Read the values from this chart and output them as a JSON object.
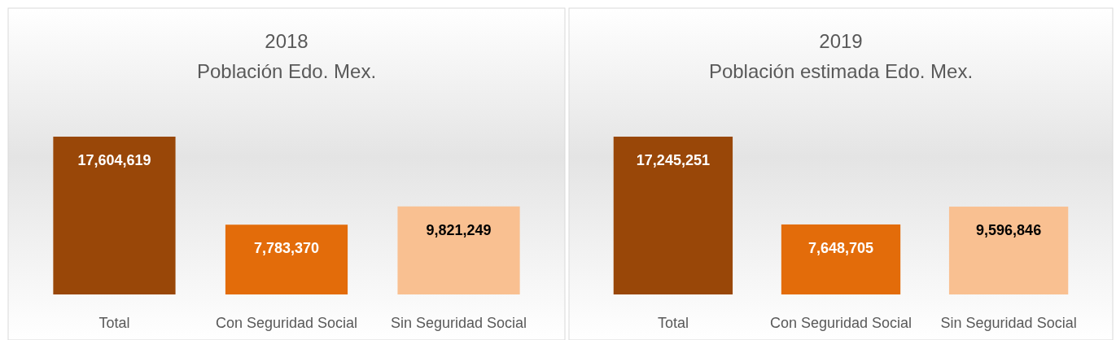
{
  "chart_data": [
    {
      "type": "bar",
      "title": "2018",
      "subtitle": "Población Edo. Mex.",
      "categories": [
        "Total",
        "Con Seguridad Social",
        "Sin Seguridad Social"
      ],
      "values": [
        17604619,
        7783370,
        9821249
      ],
      "value_labels": [
        "17,604,619",
        "7,783,370",
        "9,821,249"
      ],
      "colors": [
        "#994708",
        "#e36c0a",
        "#f9c091"
      ],
      "grid": false
    },
    {
      "type": "bar",
      "title": "2019",
      "subtitle": "Población estimada Edo. Mex.",
      "categories": [
        "Total",
        "Con Seguridad Social",
        "Sin Seguridad Social"
      ],
      "values": [
        17245251,
        7648705,
        9596846
      ],
      "value_labels": [
        "17,245,251",
        "7,648,705",
        "9,596,846"
      ],
      "colors": [
        "#994708",
        "#e36c0a",
        "#f9c091"
      ],
      "grid": false
    }
  ]
}
